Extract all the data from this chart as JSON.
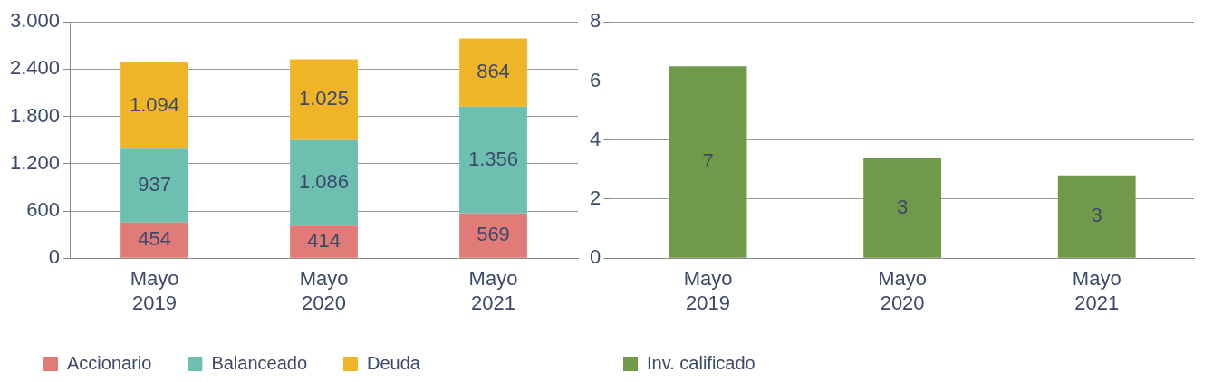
{
  "chart_data": [
    {
      "type": "bar",
      "stacked": true,
      "categories": [
        "Mayo\n2019",
        "Mayo\n2020",
        "Mayo\n2021"
      ],
      "ylim": [
        0,
        3000
      ],
      "yticks": [
        0,
        {
          "value": 600,
          "label": "600"
        },
        {
          "value": 1200,
          "label": "1.200"
        },
        {
          "value": 1800,
          "label": "1.800"
        },
        {
          "value": 2400,
          "label": "2.400"
        },
        {
          "value": 3000,
          "label": "3.000"
        }
      ],
      "grid": "y",
      "legend": "bottom",
      "series": [
        {
          "name": "Accionario",
          "color": "#e07b77",
          "values": [
            454,
            414,
            569
          ],
          "value_labels": [
            "454",
            "414",
            "569"
          ]
        },
        {
          "name": "Balanceado",
          "color": "#6dbfb0",
          "values": [
            937,
            1086,
            1356
          ],
          "value_labels": [
            "937",
            "1.086",
            "1.356"
          ]
        },
        {
          "name": "Deuda",
          "color": "#f0b429",
          "values": [
            1094,
            1025,
            864
          ],
          "value_labels": [
            "1.094",
            "1.025",
            "864"
          ]
        }
      ]
    },
    {
      "type": "bar",
      "categories": [
        "Mayo\n2019",
        "Mayo\n2020",
        "Mayo\n2021"
      ],
      "ylim": [
        0,
        8
      ],
      "yticks": [
        0,
        2,
        4,
        6,
        8
      ],
      "grid": "y",
      "legend": "bottom",
      "series": [
        {
          "name": "Inv. calificado",
          "color": "#71994a",
          "values": [
            6.5,
            3.4,
            2.8
          ],
          "value_labels": [
            "7",
            "3",
            "3"
          ]
        }
      ]
    }
  ]
}
